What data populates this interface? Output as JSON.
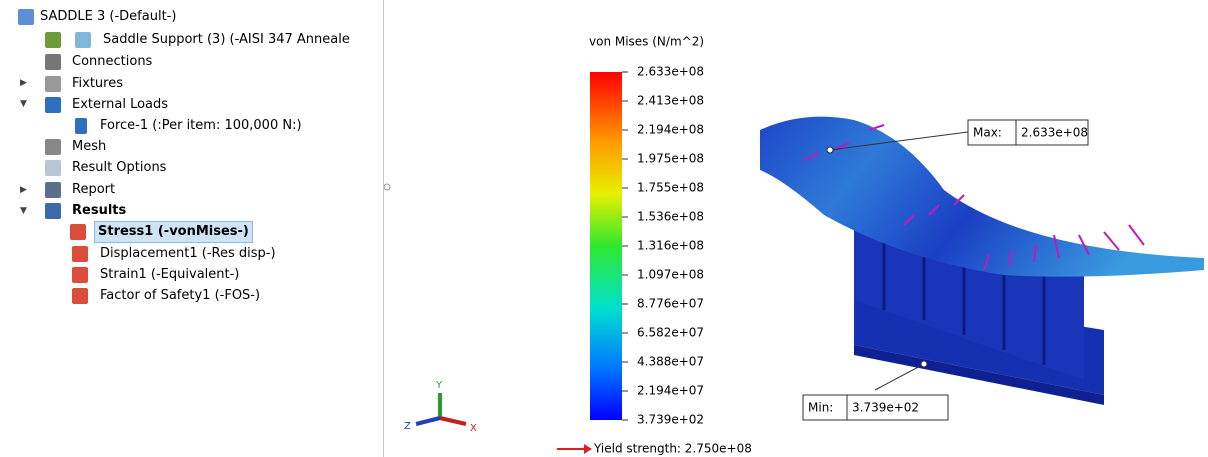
{
  "tree": {
    "title": "SADDLE 3 (-Default-)",
    "items": [
      "Saddle Support (3) (-AISI 347 Anneale",
      "Connections",
      "Fixtures",
      "External Loads",
      "Force-1 (:Per item: 100,000 N:)",
      "Mesh",
      "Result Options",
      "Report",
      "Results",
      "Stress1 (-vonMises-)",
      "Displacement1 (-Res disp-)",
      "Strain1 (-Equivalent-)",
      "Factor of Safety1 (-FOS-)"
    ]
  },
  "legend": {
    "title": "von Mises (N/m^2)",
    "labels": [
      "2.633e+08",
      "2.413e+08",
      "2.194e+08",
      "1.975e+08",
      "1.755e+08",
      "1.536e+08",
      "1.316e+08",
      "1.097e+08",
      "8.776e+07",
      "6.582e+07",
      "4.388e+07",
      "2.194e+07",
      "3.739e+02"
    ]
  },
  "callouts": {
    "max_label": "Max:",
    "max_value": "2.633e+08",
    "min_label": "Min:",
    "min_value": "3.739e+02"
  },
  "yield": "Yield strength: 2.750e+08",
  "triad": {
    "x": "X",
    "y": "Y",
    "z": "Z"
  }
}
